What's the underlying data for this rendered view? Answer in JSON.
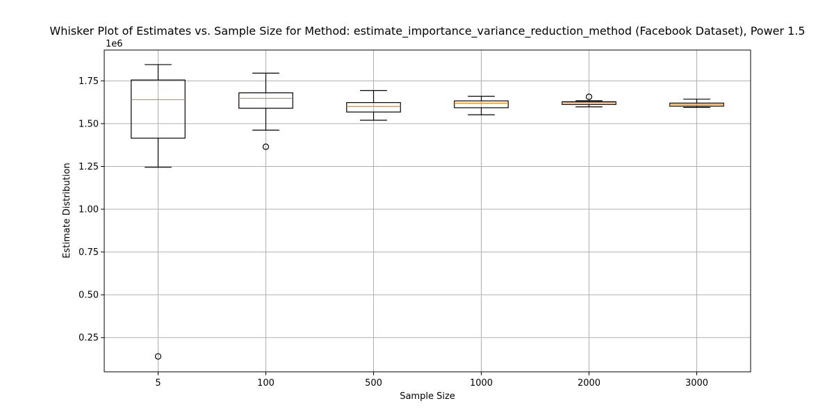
{
  "chart_data": {
    "type": "box",
    "title": "Whisker Plot of Estimates vs. Sample Size for Method: estimate_importance_variance_reduction_method (Facebook Dataset), Power 1.5",
    "xlabel": "Sample Size",
    "ylabel": "Estimate Distribution",
    "y_offset_text": "1e6",
    "y_scale_factor": 1000000,
    "ylim": [
      50000,
      1930000
    ],
    "yticks": [
      250000,
      500000,
      750000,
      1000000,
      1250000,
      1500000,
      1750000
    ],
    "ytick_labels": [
      "0.25",
      "0.50",
      "0.75",
      "1.00",
      "1.25",
      "1.50",
      "1.75"
    ],
    "grid": true,
    "categories": [
      "5",
      "100",
      "500",
      "1000",
      "2000",
      "3000"
    ],
    "boxes": [
      {
        "category": "5",
        "whisker_low": 1245000,
        "q1": 1415000,
        "median": 1640000,
        "q3": 1755000,
        "whisker_high": 1845000,
        "outliers": [
          140000
        ]
      },
      {
        "category": "100",
        "whisker_low": 1462000,
        "q1": 1590000,
        "median": 1648000,
        "q3": 1680000,
        "whisker_high": 1795000,
        "outliers": [
          1365000
        ]
      },
      {
        "category": "500",
        "whisker_low": 1520000,
        "q1": 1568000,
        "median": 1600000,
        "q3": 1623000,
        "whisker_high": 1693000,
        "outliers": []
      },
      {
        "category": "1000",
        "whisker_low": 1552000,
        "q1": 1593000,
        "median": 1620000,
        "q3": 1633000,
        "whisker_high": 1660000,
        "outliers": []
      },
      {
        "category": "2000",
        "whisker_low": 1598000,
        "q1": 1612000,
        "median": 1622000,
        "q3": 1628000,
        "whisker_high": 1634000,
        "outliers": [
          1657000
        ]
      },
      {
        "category": "3000",
        "whisker_low": 1595000,
        "q1": 1602000,
        "median": 1612000,
        "q3": 1620000,
        "whisker_high": 1643000,
        "outliers": []
      }
    ],
    "colors": {
      "box": "#000000",
      "median": "#ff7f0e",
      "grid": "#b0b0b0"
    }
  }
}
